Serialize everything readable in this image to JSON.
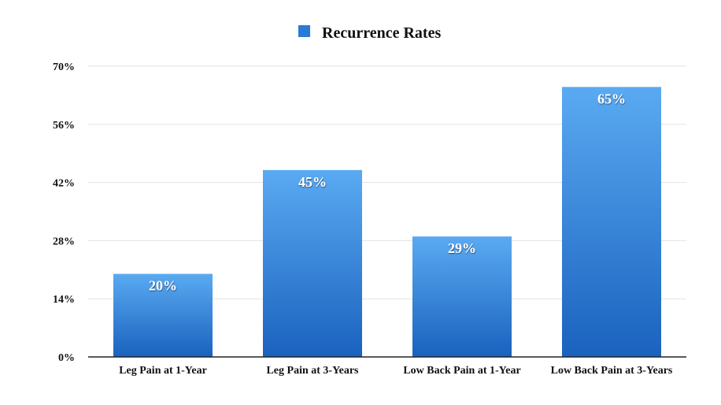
{
  "chart_data": {
    "type": "bar",
    "categories": [
      "Leg Pain at 1-Year",
      "Leg Pain at 3-Years",
      "Low Back Pain at 1-Year",
      "Low Back Pain at 3-Years"
    ],
    "series": [
      {
        "name": "Recurrence Rates",
        "values": [
          20,
          45,
          29,
          65
        ]
      }
    ],
    "data_labels": [
      "20%",
      "45%",
      "29%",
      "65%"
    ],
    "y_ticks": [
      "0%",
      "14%",
      "28%",
      "42%",
      "56%",
      "70%"
    ],
    "ylim": [
      0,
      70
    ],
    "grid": true,
    "legend_position": "top-center",
    "colors": {
      "bar_top": "#5aaaf2",
      "bar_bottom": "#1a62be",
      "legend_swatch": "#2a7ad6",
      "grid": "#e2e2e2",
      "axis": "#222222"
    }
  }
}
